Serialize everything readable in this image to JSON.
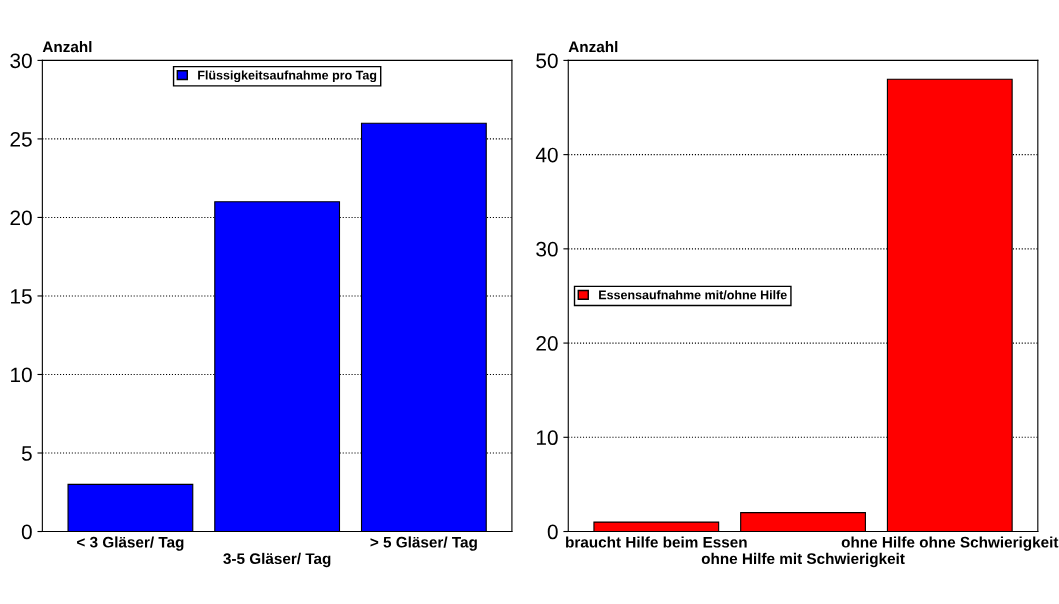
{
  "chart_data": [
    {
      "type": "bar",
      "ylabel": "Anzahl",
      "categories": [
        "< 3 Gläser/ Tag",
        "3-5 Gläser/ Tag",
        "> 5 Gläser/ Tag"
      ],
      "series": [
        {
          "name": "Flüssigkeitsaufnahme pro Tag",
          "color": "#0000ff",
          "values": [
            3,
            21,
            26
          ]
        }
      ],
      "ylim": [
        0,
        30
      ],
      "yticks": [
        0,
        5,
        10,
        15,
        20,
        25,
        30
      ],
      "grid": "y",
      "legend": "top"
    },
    {
      "type": "bar",
      "ylabel": "Anzahl",
      "categories": [
        "braucht Hilfe beim Essen",
        "ohne Hilfe mit Schwierigkeit",
        "ohne Hilfe ohne Schwierigkeit"
      ],
      "series": [
        {
          "name": "Essensaufnahme mit/ohne Hilfe",
          "color": "#ff0000",
          "values": [
            1,
            2,
            48
          ]
        }
      ],
      "ylim": [
        0,
        50
      ],
      "yticks": [
        0,
        10,
        20,
        30,
        40,
        50
      ],
      "grid": "y",
      "legend": "center left"
    }
  ]
}
